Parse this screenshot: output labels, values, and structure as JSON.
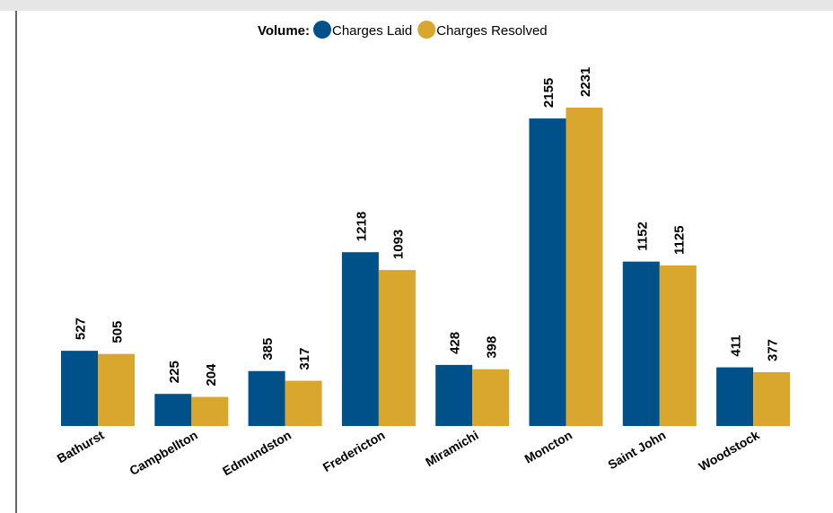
{
  "chart_data": {
    "type": "bar",
    "legend_title": "Volume:",
    "categories": [
      "Bathurst",
      "Campbellton",
      "Edmundston",
      "Fredericton",
      "Miramichi",
      "Moncton",
      "Saint John",
      "Woodstock"
    ],
    "series": [
      {
        "name": "Charges Laid",
        "color": "#00518a",
        "values": [
          527,
          225,
          385,
          1218,
          428,
          2155,
          1152,
          411
        ]
      },
      {
        "name": "Charges Resolved",
        "color": "#d9a62e",
        "values": [
          505,
          204,
          317,
          1093,
          398,
          2231,
          1125,
          377
        ]
      }
    ]
  }
}
